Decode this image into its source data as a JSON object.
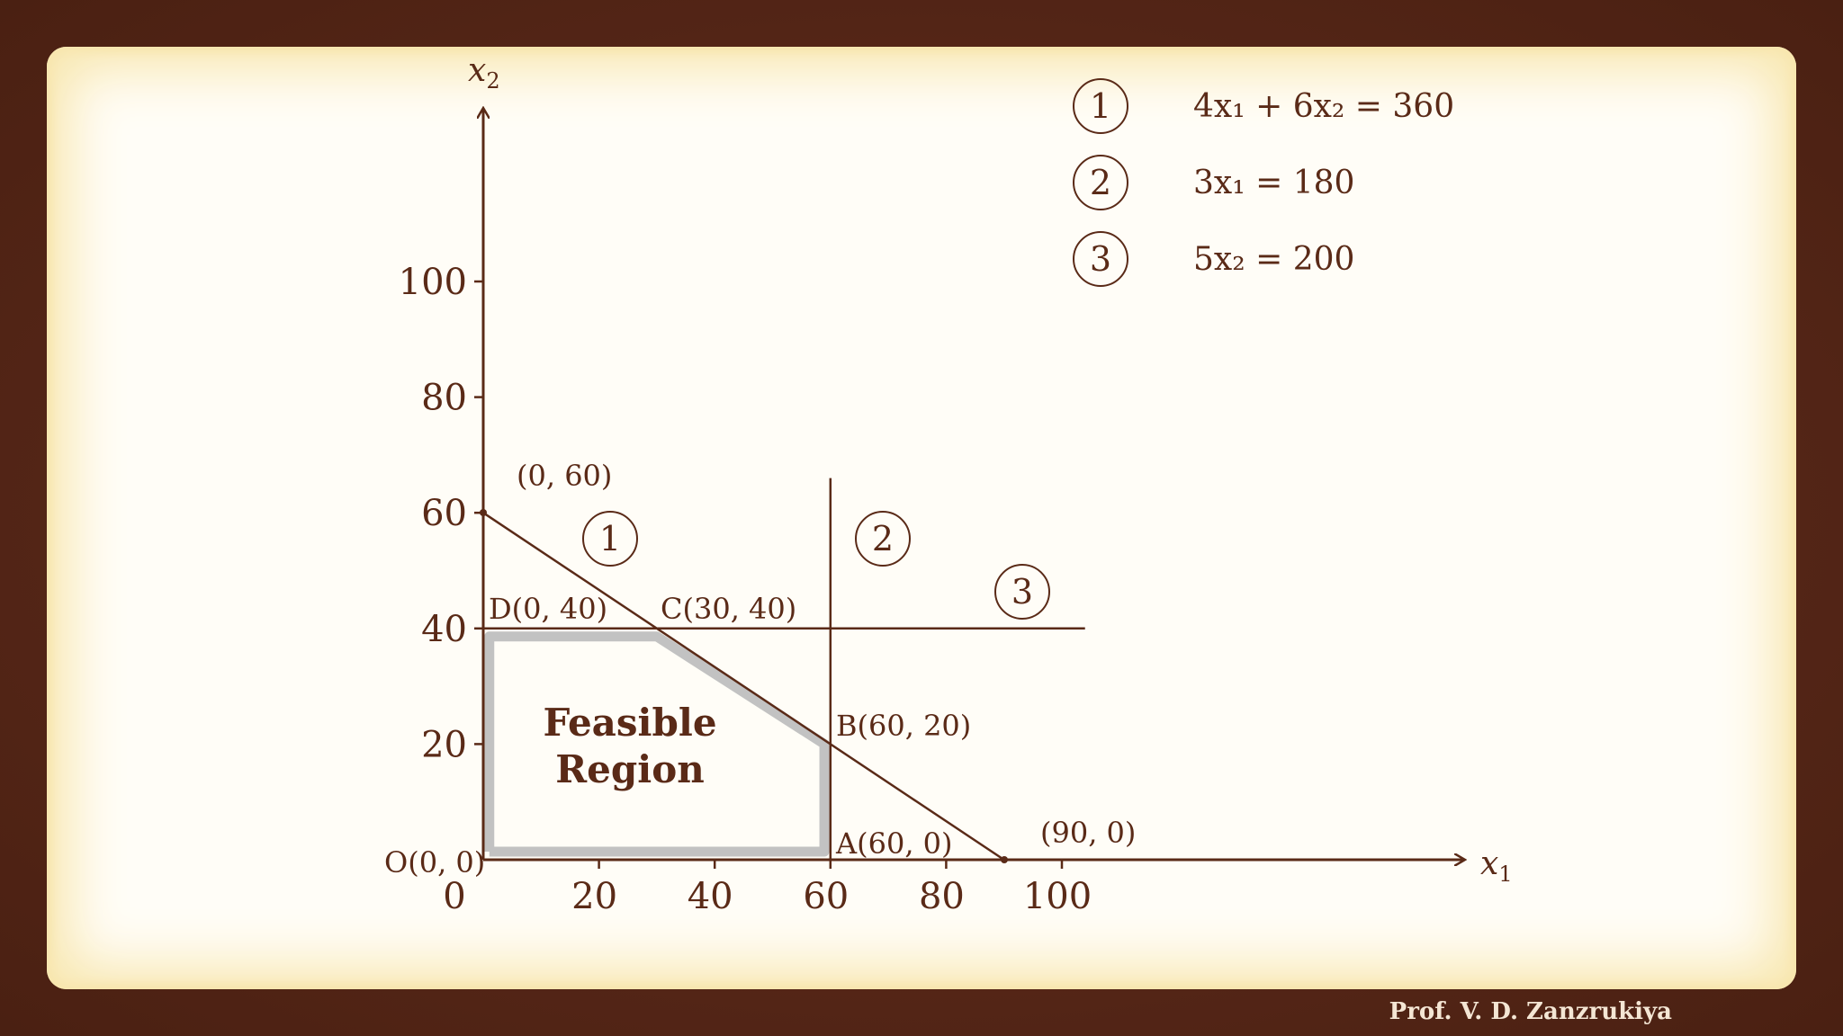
{
  "axes": {
    "x_label_base": "x",
    "x_label_sub": "1",
    "y_label_base": "x",
    "y_label_sub": "2",
    "x_ticks": [
      "0",
      "20",
      "40",
      "60",
      "80",
      "100"
    ],
    "y_ticks": [
      "20",
      "40",
      "60",
      "80",
      "100"
    ]
  },
  "constraints": [
    {
      "id": "1",
      "text": "4x₁ + 6x₂ = 360"
    },
    {
      "id": "2",
      "text": "3x₁ = 180"
    },
    {
      "id": "3",
      "text": "5x₂ = 200"
    }
  ],
  "line_markers": [
    "1",
    "2",
    "3"
  ],
  "points": {
    "O": "O(0, 0)",
    "A": "A(60, 0)",
    "B": "B(60, 20)",
    "C": "C(30, 40)",
    "D": "D(0, 40)",
    "y_intercept": "(0, 60)",
    "x_intercept": "(90, 0)"
  },
  "region": {
    "line1": "Feasible",
    "line2": "Region"
  },
  "credit": "Prof. V. D. Zanzrukiya",
  "chart_data": {
    "type": "line",
    "xlim": [
      0,
      100
    ],
    "ylim": [
      0,
      100
    ],
    "lines": [
      {
        "label": "1",
        "x": [
          0,
          90
        ],
        "y": [
          60,
          0
        ]
      },
      {
        "label": "2",
        "x": [
          60,
          60
        ],
        "y": [
          0,
          66
        ]
      },
      {
        "label": "3",
        "x": [
          0,
          104
        ],
        "y": [
          40,
          40
        ]
      }
    ],
    "feasible_region": [
      [
        0,
        0
      ],
      [
        60,
        0
      ],
      [
        60,
        20
      ],
      [
        30,
        40
      ],
      [
        0,
        40
      ]
    ],
    "colors": {
      "ink": "#5a2a17",
      "region_border": "#c0c0c0",
      "frame_bg": "#fffdf7",
      "outer_bg": "#5b2a18"
    }
  }
}
